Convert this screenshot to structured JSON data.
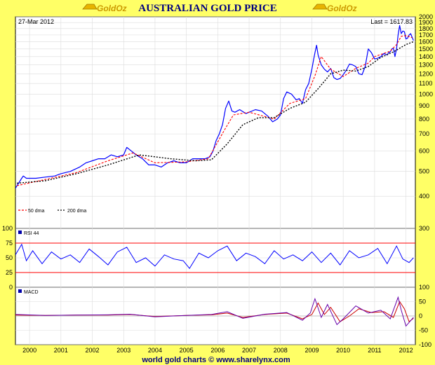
{
  "header": {
    "title": "AUSTRALIAN GOLD PRICE",
    "logo_text": "GoldOz"
  },
  "footer": {
    "text": "world gold charts © www.sharelynx.com"
  },
  "colors": {
    "background": "#ffff66",
    "panel": "#ffffff",
    "price_line": "#0000ff",
    "ma50": "#ff0000",
    "ma200": "#000000",
    "rsi_bands": "#ff0000",
    "macd_signal": "#cc0000",
    "macd_line": "#6600aa"
  },
  "chart_data": [
    {
      "type": "line",
      "title": "AUSTRALIAN GOLD PRICE",
      "date_label": "27-Mar 2012",
      "last_label": "Last = 1617.83",
      "y_scale": "log",
      "ylim": [
        300,
        2000
      ],
      "y_ticks": [
        300,
        400,
        500,
        600,
        700,
        800,
        900,
        1000,
        1100,
        1200,
        1300,
        1400,
        1500,
        1600,
        1700,
        1800,
        1900,
        2000
      ],
      "xlim": [
        1999.55,
        2012.3
      ],
      "x_ticks": [
        "2000",
        "2001",
        "2002",
        "2003",
        "2004",
        "2005",
        "2006",
        "2007",
        "2008",
        "2009",
        "2010",
        "2011",
        "2012"
      ],
      "legend": [
        "50 dma",
        "200 dma"
      ],
      "series": [
        {
          "name": "price",
          "x": [
            1999.55,
            1999.65,
            1999.75,
            1999.8,
            1999.9,
            2000.0,
            2000.2,
            2000.5,
            2000.8,
            2001.0,
            2001.3,
            2001.6,
            2001.8,
            2002.0,
            2002.2,
            2002.4,
            2002.6,
            2002.8,
            2003.0,
            2003.1,
            2003.25,
            2003.4,
            2003.6,
            2003.8,
            2004.0,
            2004.2,
            2004.4,
            2004.6,
            2004.8,
            2005.0,
            2005.2,
            2005.4,
            2005.6,
            2005.75,
            2005.85,
            2005.95,
            2006.05,
            2006.15,
            2006.25,
            2006.35,
            2006.45,
            2006.55,
            2006.7,
            2006.9,
            2007.0,
            2007.2,
            2007.4,
            2007.6,
            2007.75,
            2007.9,
            2008.0,
            2008.1,
            2008.2,
            2008.35,
            2008.5,
            2008.6,
            2008.7,
            2008.8,
            2008.9,
            2009.0,
            2009.05,
            2009.1,
            2009.15,
            2009.2,
            2009.3,
            2009.4,
            2009.5,
            2009.6,
            2009.7,
            2009.8,
            2009.9,
            2010.0,
            2010.1,
            2010.2,
            2010.3,
            2010.4,
            2010.5,
            2010.6,
            2010.7,
            2010.8,
            2010.9,
            2011.0,
            2011.1,
            2011.2,
            2011.3,
            2011.4,
            2011.45,
            2011.5,
            2011.55,
            2011.6,
            2011.65,
            2011.7,
            2011.75,
            2011.8,
            2011.85,
            2011.9,
            2011.95,
            2012.0,
            2012.05,
            2012.1,
            2012.15,
            2012.24
          ],
          "y": [
            430,
            450,
            470,
            480,
            470,
            470,
            470,
            475,
            480,
            490,
            500,
            520,
            540,
            550,
            560,
            560,
            580,
            570,
            580,
            620,
            600,
            580,
            560,
            530,
            530,
            520,
            540,
            550,
            540,
            540,
            560,
            560,
            560,
            570,
            600,
            660,
            700,
            760,
            880,
            940,
            860,
            850,
            870,
            840,
            850,
            870,
            860,
            820,
            780,
            800,
            830,
            960,
            1020,
            1000,
            950,
            960,
            920,
            1040,
            1100,
            1250,
            1350,
            1450,
            1550,
            1420,
            1300,
            1250,
            1220,
            1260,
            1160,
            1140,
            1150,
            1190,
            1240,
            1310,
            1300,
            1280,
            1200,
            1190,
            1280,
            1500,
            1450,
            1370,
            1380,
            1400,
            1440,
            1420,
            1450,
            1460,
            1500,
            1510,
            1400,
            1500,
            1700,
            1850,
            1720,
            1760,
            1750,
            1640,
            1650,
            1700,
            1720,
            1617.83
          ]
        },
        {
          "name": "50 dma",
          "x": [
            1999.6,
            2000.5,
            2001.5,
            2002.5,
            2003.3,
            2004.0,
            2005.0,
            2005.7,
            2006.2,
            2006.5,
            2007.0,
            2007.8,
            2008.3,
            2008.8,
            2009.1,
            2009.3,
            2009.6,
            2010.0,
            2010.4,
            2010.8,
            2011.0,
            2011.5,
            2011.7,
            2011.85,
            2012.0,
            2012.2
          ],
          "y": [
            440,
            465,
            495,
            550,
            590,
            540,
            545,
            560,
            720,
            830,
            850,
            800,
            920,
            960,
            1180,
            1400,
            1250,
            1170,
            1260,
            1320,
            1400,
            1470,
            1560,
            1680,
            1690,
            1660
          ]
        },
        {
          "name": "200 dma",
          "x": [
            1999.6,
            2000.5,
            2001.5,
            2002.5,
            2003.5,
            2004.5,
            2005.3,
            2005.8,
            2006.3,
            2006.8,
            2007.3,
            2007.8,
            2008.3,
            2008.8,
            2009.2,
            2009.6,
            2010.0,
            2010.4,
            2010.8,
            2011.2,
            2011.6,
            2012.0,
            2012.24
          ],
          "y": [
            450,
            460,
            490,
            530,
            580,
            560,
            550,
            555,
            640,
            760,
            810,
            810,
            880,
            930,
            1050,
            1200,
            1240,
            1230,
            1280,
            1390,
            1460,
            1560,
            1600
          ]
        }
      ]
    },
    {
      "type": "line",
      "title": "RSI 44",
      "ylim": [
        0,
        100
      ],
      "y_ticks": [
        0,
        25,
        50,
        75,
        100
      ],
      "bands": [
        25,
        75
      ],
      "series": [
        {
          "name": "RSI 44",
          "x": [
            1999.55,
            1999.75,
            1999.9,
            2000.1,
            2000.4,
            2000.7,
            2001.0,
            2001.3,
            2001.6,
            2001.9,
            2002.2,
            2002.5,
            2002.8,
            2003.1,
            2003.4,
            2003.7,
            2004.0,
            2004.3,
            2004.6,
            2004.9,
            2005.1,
            2005.4,
            2005.7,
            2006.0,
            2006.3,
            2006.6,
            2006.9,
            2007.2,
            2007.5,
            2007.8,
            2008.1,
            2008.4,
            2008.7,
            2009.0,
            2009.3,
            2009.6,
            2009.9,
            2010.2,
            2010.5,
            2010.8,
            2011.1,
            2011.4,
            2011.7,
            2011.9,
            2012.1,
            2012.24
          ],
          "y": [
            55,
            73,
            45,
            62,
            40,
            60,
            48,
            55,
            42,
            65,
            52,
            38,
            60,
            68,
            42,
            50,
            36,
            55,
            48,
            45,
            32,
            58,
            50,
            62,
            70,
            45,
            58,
            52,
            40,
            62,
            48,
            55,
            45,
            60,
            42,
            58,
            38,
            62,
            50,
            55,
            66,
            40,
            70,
            48,
            42,
            50
          ]
        }
      ]
    },
    {
      "type": "line",
      "title": "MACD",
      "ylim": [
        -100,
        100
      ],
      "y_ticks": [
        -100,
        -50,
        0,
        50,
        100
      ],
      "series": [
        {
          "name": "MACD",
          "x": [
            1999.55,
            2000.5,
            2001.5,
            2002.5,
            2003.2,
            2004.0,
            2005.0,
            2005.8,
            2006.3,
            2006.8,
            2007.5,
            2008.2,
            2008.7,
            2008.95,
            2009.1,
            2009.3,
            2009.5,
            2009.8,
            2010.0,
            2010.4,
            2010.8,
            2011.2,
            2011.5,
            2011.75,
            2011.85,
            2012.0,
            2012.24
          ],
          "y": [
            5,
            2,
            3,
            4,
            6,
            -3,
            2,
            5,
            15,
            -8,
            6,
            12,
            -15,
            10,
            60,
            -5,
            40,
            -30,
            -10,
            35,
            10,
            20,
            -10,
            65,
            20,
            -35,
            -5
          ]
        },
        {
          "name": "signal",
          "x": [
            1999.55,
            2000.5,
            2001.5,
            2002.5,
            2003.2,
            2004.0,
            2005.0,
            2005.8,
            2006.3,
            2006.8,
            2007.5,
            2008.2,
            2008.7,
            2009.0,
            2009.2,
            2009.4,
            2009.6,
            2009.9,
            2010.2,
            2010.5,
            2010.9,
            2011.3,
            2011.6,
            2011.8,
            2011.95,
            2012.1,
            2012.24
          ],
          "y": [
            3,
            2,
            3,
            3,
            5,
            -2,
            2,
            4,
            10,
            -5,
            5,
            10,
            -10,
            5,
            45,
            5,
            30,
            -20,
            0,
            25,
            12,
            15,
            -5,
            50,
            25,
            -20,
            -8
          ]
        }
      ]
    }
  ]
}
